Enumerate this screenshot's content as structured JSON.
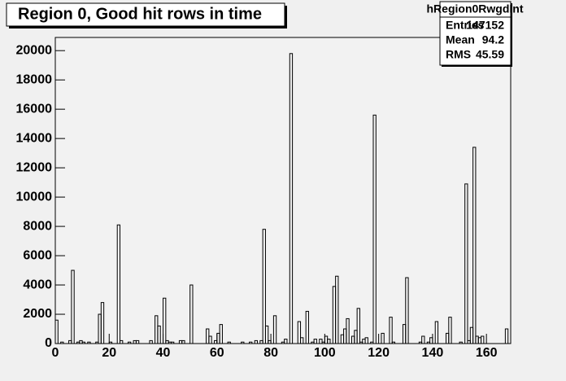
{
  "chart_data": {
    "type": "histogram",
    "title": "Region 0, Good hit rows in time",
    "stats": {
      "title": "hRegion0RwgdInt",
      "rows": [
        [
          "Entries",
          147152
        ],
        [
          "Mean",
          94.2
        ],
        [
          "RMS",
          45.59
        ]
      ]
    },
    "bins": [
      0,
      1,
      2,
      3,
      4,
      5,
      6,
      7,
      8,
      9,
      10,
      11,
      12,
      13,
      14,
      15,
      16,
      17,
      18,
      19,
      20,
      21,
      22,
      23,
      24,
      25,
      26,
      27,
      28,
      29,
      30,
      31,
      32,
      33,
      34,
      35,
      36,
      37,
      38,
      39,
      40,
      41,
      42,
      43,
      44,
      45,
      46,
      47,
      48,
      49,
      50,
      51,
      52,
      53,
      54,
      55,
      56,
      57,
      58,
      59,
      60,
      61,
      62,
      63,
      64,
      65,
      66,
      67,
      68,
      69,
      70,
      71,
      72,
      73,
      74,
      75,
      76,
      77,
      78,
      79,
      80,
      81,
      82,
      83,
      84,
      85,
      86,
      87,
      88,
      89,
      90,
      91,
      92,
      93,
      94,
      95,
      96,
      97,
      98,
      99,
      100,
      101,
      102,
      103,
      104,
      105,
      106,
      107,
      108,
      109,
      110,
      111,
      112,
      113,
      114,
      115,
      116,
      117,
      118,
      119,
      120,
      121,
      122,
      123,
      124,
      125,
      126,
      127,
      128,
      129,
      130,
      131,
      132,
      133,
      134,
      135,
      136,
      137,
      138,
      139,
      140,
      141,
      142,
      143,
      144,
      145,
      146,
      147,
      148,
      149,
      150,
      151,
      152,
      153,
      154,
      155,
      156,
      157,
      158,
      159,
      160,
      161,
      162,
      163,
      164,
      165,
      166,
      167,
      168,
      169
    ],
    "counts": [
      1600,
      0,
      100,
      0,
      0,
      200,
      5000,
      0,
      100,
      200,
      100,
      0,
      100,
      0,
      0,
      100,
      2000,
      2800,
      0,
      0,
      100,
      0,
      0,
      8100,
      200,
      0,
      0,
      100,
      0,
      200,
      200,
      0,
      0,
      0,
      0,
      200,
      0,
      1900,
      1200,
      0,
      3100,
      200,
      100,
      100,
      0,
      0,
      200,
      200,
      0,
      0,
      4000,
      0,
      0,
      0,
      0,
      0,
      1000,
      500,
      0,
      200,
      700,
      1300,
      0,
      0,
      100,
      0,
      0,
      0,
      0,
      100,
      0,
      0,
      100,
      0,
      200,
      0,
      200,
      7800,
      1200,
      200,
      0,
      1900,
      0,
      0,
      100,
      300,
      0,
      19800,
      0,
      0,
      1500,
      400,
      0,
      2200,
      0,
      100,
      300,
      0,
      300,
      100,
      500,
      300,
      0,
      3900,
      4600,
      0,
      600,
      1000,
      1700,
      0,
      500,
      900,
      2400,
      100,
      300,
      400,
      0,
      100,
      15600,
      0,
      0,
      700,
      0,
      0,
      1800,
      100,
      0,
      0,
      0,
      1300,
      4500,
      0,
      0,
      0,
      0,
      100,
      500,
      0,
      100,
      400,
      0,
      1500,
      0,
      0,
      0,
      700,
      1800,
      0,
      0,
      0,
      100,
      0,
      10900,
      200,
      1100,
      13400,
      500,
      400,
      500,
      0,
      0,
      0,
      0,
      0,
      0,
      0,
      0,
      1000,
      0
    ],
    "color": "#000000",
    "xlim": [
      0,
      169
    ],
    "xticks": [
      0,
      20,
      40,
      60,
      80,
      100,
      120,
      140,
      160
    ],
    "ylim": [
      0,
      20900
    ],
    "yticks": [
      0,
      2000,
      4000,
      6000,
      8000,
      10000,
      12000,
      14000,
      16000,
      18000,
      20000
    ]
  }
}
